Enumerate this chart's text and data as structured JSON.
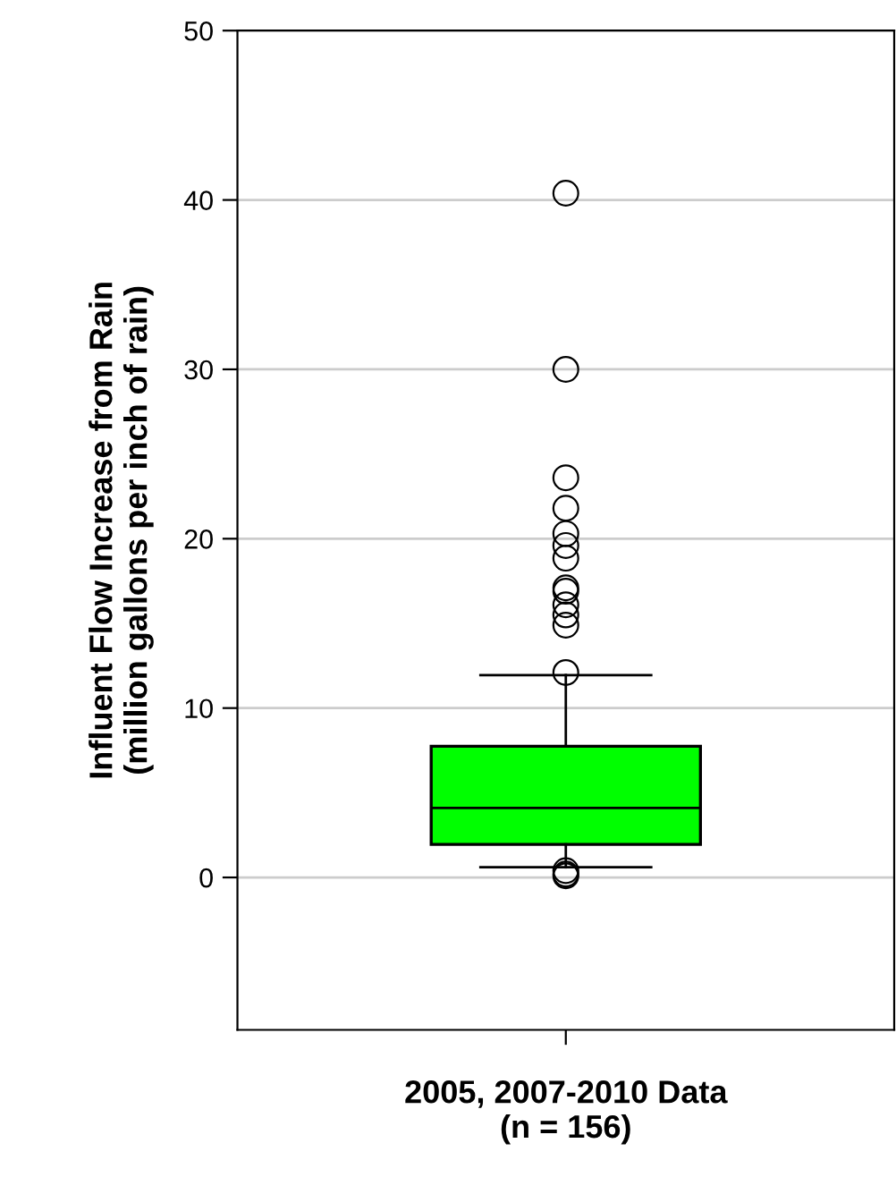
{
  "chart_data": {
    "type": "box",
    "categories": [
      "2005, 2007-2010 Data\n(n = 156)"
    ],
    "ylabel": "Influent Flow Increase from Rain\n(million gallons per inch of rain)",
    "boxes": [
      {
        "low": 0.6,
        "q1": 1.95,
        "median": 4.1,
        "q3": 7.75,
        "high": 11.95,
        "outliers": [
          40.4,
          30.0,
          23.6,
          21.8,
          20.3,
          19.6,
          18.85,
          17.1,
          16.9,
          16.1,
          15.5,
          14.9,
          12.1,
          0.4,
          0.2,
          0.1
        ]
      }
    ],
    "colors": [
      "#00ff00"
    ],
    "ylim": [
      -9,
      50
    ],
    "yticks": [
      0,
      10,
      20,
      30,
      40,
      50
    ],
    "grid": "y",
    "marker": "circle"
  }
}
